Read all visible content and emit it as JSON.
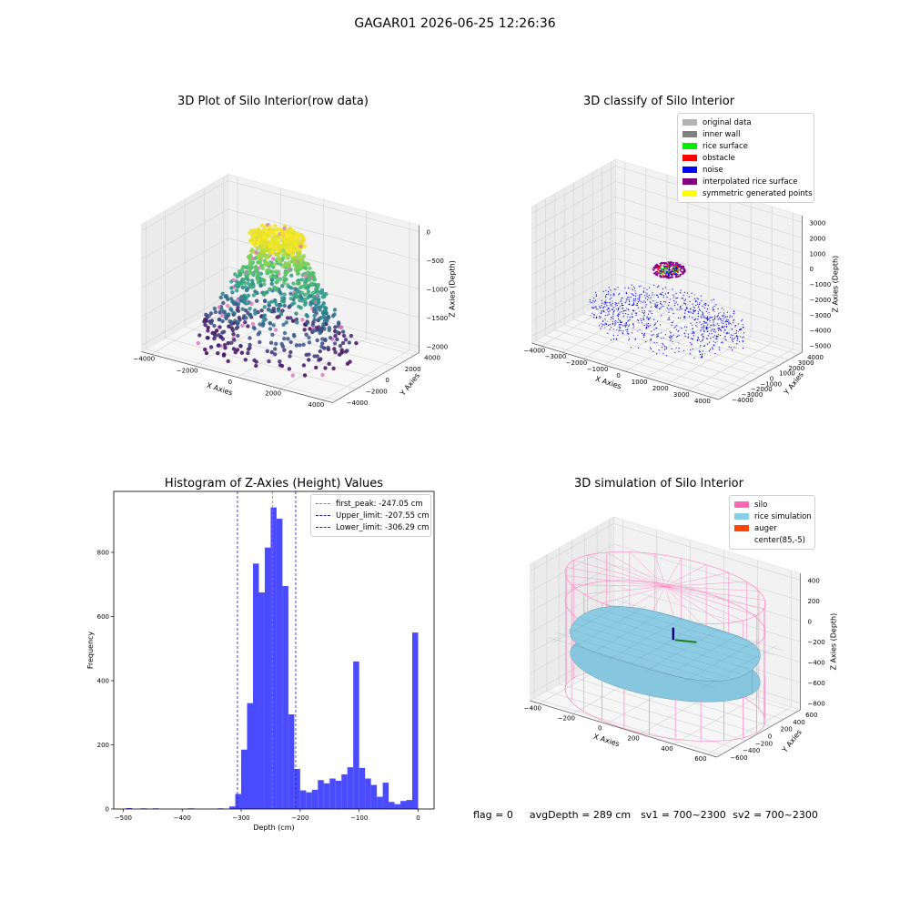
{
  "suptitle": "GAGAR01 2026-06-25 12:26:36",
  "colors": {
    "hist_bar": "#4a4aff",
    "first_peak": "#e06060",
    "limits": "#2222aa",
    "rice_fill": "#86c6de",
    "silo_wire": "#ff7fbf",
    "axis_pane": "#f2f2f2"
  },
  "chart_data": [
    {
      "type": "scatter",
      "projection": "3d",
      "title": "3D Plot of Silo Interior(row data)",
      "xlabel": "X Axies",
      "ylabel": "Y Axies",
      "zlabel": "Z Axies (Depth)",
      "xticks": [
        "−4000",
        "−2000",
        "0",
        "2000",
        "4000"
      ],
      "yticks": [
        "−4000",
        "−2000",
        "0",
        "2000",
        "4000"
      ],
      "zticks": [
        "0",
        "−500",
        "−1000",
        "−1500",
        "−2000"
      ],
      "colormap": "viridis by depth"
    },
    {
      "type": "scatter",
      "projection": "3d",
      "title": "3D classify of Silo Interior",
      "xlabel": "X Axies",
      "ylabel": "Y Axies",
      "zlabel": "Z Axies (Depth)",
      "xticks": [
        "−4000",
        "−3000",
        "−2000",
        "−1000",
        "0",
        "1000",
        "2000",
        "3000",
        "4000"
      ],
      "yticks": [
        "−4000",
        "−3000",
        "−2000",
        "−1000",
        "0",
        "1000",
        "2000",
        "3000",
        "4000"
      ],
      "zticks": [
        "3000",
        "2000",
        "1000",
        "0",
        "−1000",
        "−2000",
        "−3000",
        "−4000",
        "−5000"
      ],
      "legend": [
        {
          "label": "original data",
          "color": "#b3b3b3"
        },
        {
          "label": "inner wall",
          "color": "#808080"
        },
        {
          "label": "rice surface",
          "color": "#00ee00"
        },
        {
          "label": "obstacle",
          "color": "#ff0000"
        },
        {
          "label": "noise",
          "color": "#0000ff"
        },
        {
          "label": "interpolated rice surface",
          "color": "#800080"
        },
        {
          "label": "symmetric generated points",
          "color": "#ffff00"
        }
      ]
    },
    {
      "type": "bar",
      "title": "Histogram of Z-Axies (Height) Values",
      "xlabel": "Depth (cm)",
      "ylabel": "Frequency",
      "xlim": [
        -516,
        27
      ],
      "ylim": [
        0,
        990
      ],
      "xticks": [
        -500,
        -400,
        -300,
        -200,
        -100,
        0
      ],
      "yticks": [
        0,
        200,
        400,
        600,
        800
      ],
      "bin_width": 10,
      "bins": [
        {
          "x0": -495,
          "count": 3
        },
        {
          "x0": -470,
          "count": 2
        },
        {
          "x0": -450,
          "count": 2
        },
        {
          "x0": -390,
          "count": 2
        },
        {
          "x0": -340,
          "count": 2
        },
        {
          "x0": -320,
          "count": 8
        },
        {
          "x0": -310,
          "count": 47
        },
        {
          "x0": -300,
          "count": 185
        },
        {
          "x0": -290,
          "count": 330
        },
        {
          "x0": -280,
          "count": 765
        },
        {
          "x0": -270,
          "count": 675
        },
        {
          "x0": -260,
          "count": 815
        },
        {
          "x0": -250,
          "count": 940
        },
        {
          "x0": -240,
          "count": 905
        },
        {
          "x0": -230,
          "count": 695
        },
        {
          "x0": -220,
          "count": 295
        },
        {
          "x0": -210,
          "count": 125
        },
        {
          "x0": -200,
          "count": 58
        },
        {
          "x0": -190,
          "count": 52
        },
        {
          "x0": -180,
          "count": 60
        },
        {
          "x0": -170,
          "count": 90
        },
        {
          "x0": -160,
          "count": 80
        },
        {
          "x0": -150,
          "count": 95
        },
        {
          "x0": -140,
          "count": 88
        },
        {
          "x0": -130,
          "count": 108
        },
        {
          "x0": -120,
          "count": 130
        },
        {
          "x0": -110,
          "count": 460
        },
        {
          "x0": -100,
          "count": 128
        },
        {
          "x0": -90,
          "count": 95
        },
        {
          "x0": -80,
          "count": 75
        },
        {
          "x0": -70,
          "count": 38
        },
        {
          "x0": -60,
          "count": 82
        },
        {
          "x0": -50,
          "count": 22
        },
        {
          "x0": -40,
          "count": 15
        },
        {
          "x0": -30,
          "count": 25
        },
        {
          "x0": -20,
          "count": 28
        },
        {
          "x0": -10,
          "count": 550
        }
      ],
      "vlines": [
        {
          "label": "first_peak: -247.05 cm",
          "x": -247.05,
          "color": "#e06060"
        },
        {
          "label": "Upper_limit: -207.55 cm",
          "x": -207.55,
          "color": "#2222aa"
        },
        {
          "label": "Lower_limit: -306.29 cm",
          "x": -306.29,
          "color": "#2222aa"
        }
      ]
    },
    {
      "type": "surface",
      "projection": "3d",
      "title": "3D simulation of Silo Interior",
      "xlabel": "X Axies",
      "ylabel": "Y Axies",
      "zlabel": "Z Axies (Depth)",
      "xticks": [
        "−400",
        "−200",
        "0",
        "200",
        "400",
        "600"
      ],
      "yticks": [
        "−600",
        "−400",
        "−200",
        "0",
        "200",
        "400",
        "600"
      ],
      "zticks": [
        "400",
        "200",
        "0",
        "−200",
        "−400",
        "−600",
        "−800"
      ],
      "legend": [
        {
          "label": "silo",
          "color": "#ff69b4"
        },
        {
          "label": "rice simulation",
          "color": "#87ceeb"
        },
        {
          "label": "auger",
          "color": "#ff4500"
        },
        {
          "label": "center(85,-5)",
          "color": "#ffffff"
        }
      ]
    }
  ],
  "footer": {
    "flag": "flag = 0",
    "avg": "avgDepth = 289 cm",
    "sv1": "sv1 = 700~2300",
    "sv2": "sv2 = 700~2300"
  }
}
